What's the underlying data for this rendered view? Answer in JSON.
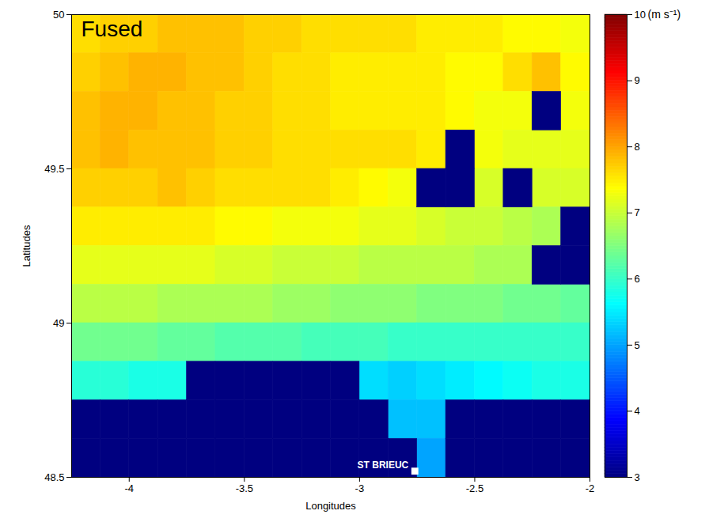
{
  "chart_data": {
    "type": "heatmap",
    "title": "Fused",
    "xlabel": "Longitudes",
    "ylabel": "Latitudes",
    "xlim": [
      -4.25,
      -2
    ],
    "ylim": [
      48.5,
      50
    ],
    "xticks": [
      -4,
      -3.5,
      -3,
      -2.5,
      -2
    ],
    "yticks": [
      48.5,
      49,
      49.5,
      50
    ],
    "x": [
      -4.1875,
      -4.0625,
      -3.9375,
      -3.8125,
      -3.6875,
      -3.5625,
      -3.4375,
      -3.3125,
      -3.1875,
      -3.0625,
      -2.9375,
      -2.8125,
      -2.6875,
      -2.5625,
      -2.4375,
      -2.3125,
      -2.1875,
      -2.0625
    ],
    "y": [
      49.9375,
      49.8125,
      49.6875,
      49.5625,
      49.4375,
      49.3125,
      49.1875,
      49.0625,
      48.9375,
      48.8125,
      48.6875,
      48.5625
    ],
    "cells": [
      [
        7.6,
        7.7,
        7.7,
        7.8,
        7.8,
        7.8,
        7.7,
        7.7,
        7.6,
        7.6,
        7.6,
        7.6,
        7.5,
        7.5,
        7.5,
        7.4,
        7.4,
        7.3
      ],
      [
        7.7,
        7.8,
        7.9,
        7.9,
        7.8,
        7.8,
        7.7,
        7.6,
        7.6,
        7.5,
        7.5,
        7.5,
        7.5,
        7.4,
        7.4,
        7.6,
        7.8,
        7.4
      ],
      [
        7.8,
        7.9,
        7.9,
        7.8,
        7.8,
        7.7,
        7.7,
        7.6,
        7.6,
        7.5,
        7.5,
        7.5,
        7.5,
        7.4,
        7.3,
        7.3,
        null,
        7.3
      ],
      [
        7.8,
        7.9,
        7.8,
        7.8,
        7.8,
        7.7,
        7.7,
        7.6,
        7.6,
        7.6,
        7.6,
        7.6,
        7.5,
        null,
        7.3,
        7.2,
        7.2,
        7.2
      ],
      [
        7.7,
        7.7,
        7.7,
        7.8,
        7.7,
        7.6,
        7.6,
        7.6,
        7.6,
        7.5,
        7.4,
        7.3,
        null,
        null,
        7.1,
        null,
        7.1,
        7.1
      ],
      [
        7.5,
        7.5,
        7.5,
        7.5,
        7.5,
        7.4,
        7.4,
        7.3,
        7.3,
        7.3,
        7.2,
        7.2,
        7.1,
        7.0,
        7.0,
        6.9,
        6.8,
        null
      ],
      [
        7.2,
        7.2,
        7.2,
        7.2,
        7.2,
        7.1,
        7.1,
        7.0,
        7.0,
        7.0,
        6.9,
        6.9,
        6.9,
        6.9,
        6.8,
        6.8,
        null,
        null
      ],
      [
        6.9,
        6.9,
        6.9,
        6.8,
        6.8,
        6.8,
        6.8,
        6.7,
        6.7,
        6.6,
        6.6,
        6.6,
        6.5,
        6.5,
        6.5,
        6.4,
        6.4,
        6.3
      ],
      [
        6.4,
        6.4,
        6.4,
        6.3,
        6.3,
        6.2,
        6.2,
        6.2,
        6.1,
        6.1,
        6.1,
        6.0,
        6.0,
        6.0,
        6.0,
        6.0,
        6.0,
        6.0
      ],
      [
        5.9,
        5.9,
        5.8,
        5.8,
        null,
        null,
        null,
        null,
        null,
        null,
        5.4,
        5.3,
        5.4,
        5.5,
        5.6,
        5.7,
        5.8,
        5.8
      ],
      [
        null,
        null,
        null,
        null,
        null,
        null,
        null,
        null,
        null,
        null,
        null,
        5.2,
        5.2,
        null,
        null,
        null,
        null,
        null
      ],
      [
        null,
        null,
        null,
        null,
        null,
        null,
        null,
        null,
        null,
        null,
        null,
        null,
        5.0,
        null,
        null,
        null,
        null,
        null
      ]
    ],
    "colorbar": {
      "label": "(m s⁻¹)",
      "lim": [
        3,
        10
      ],
      "ticks": [
        3,
        4,
        5,
        6,
        7,
        8,
        9,
        10
      ]
    },
    "annotations": [
      {
        "text": "ST BRIEUC",
        "x": -2.76,
        "y": 48.52,
        "marker": "square"
      }
    ]
  }
}
